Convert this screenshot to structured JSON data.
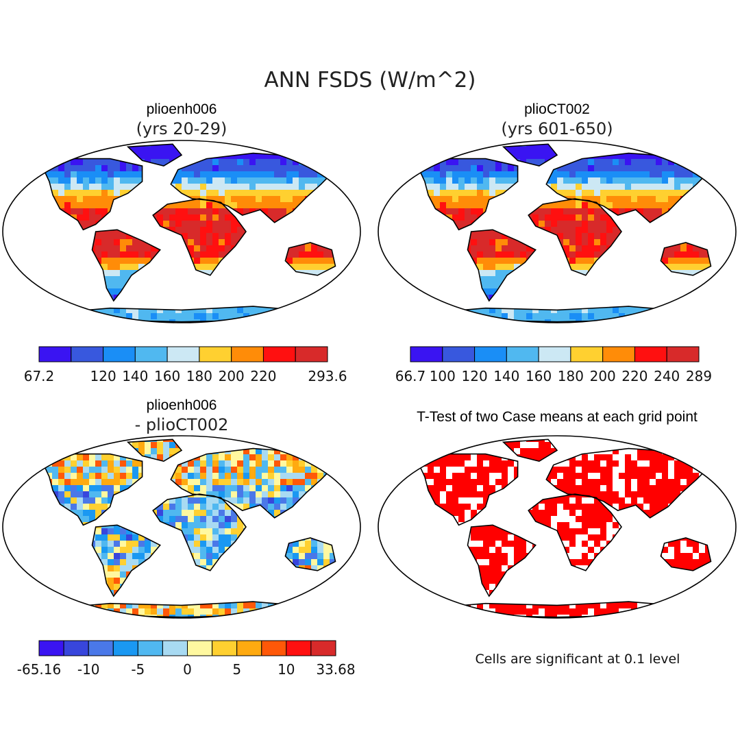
{
  "figure": {
    "title": "ANN FSDS (W/m^2)"
  },
  "panels": [
    {
      "id": "case1",
      "title": "plioenh006",
      "subtitle": "(yrs 20-29)",
      "fill": "mean_field",
      "colorbar": {
        "colors": [
          "#3a14f2",
          "#3858de",
          "#1a8ef6",
          "#50b8f0",
          "#cce8f4",
          "#ffd030",
          "#ff8c08",
          "#ff1010",
          "#d82a2a"
        ],
        "labels": [
          {
            "text": "67.2",
            "edge": 0
          },
          {
            "text": "120",
            "edge": 2
          },
          {
            "text": "140",
            "edge": 3
          },
          {
            "text": "160",
            "edge": 4
          },
          {
            "text": "180",
            "edge": 5
          },
          {
            "text": "200",
            "edge": 6
          },
          {
            "text": "220",
            "edge": 7
          },
          {
            "text": "293.6",
            "edge": 9
          }
        ]
      }
    },
    {
      "id": "case2",
      "title": "plioCT002",
      "subtitle": "(yrs 601-650)",
      "fill": "mean_field",
      "colorbar": {
        "colors": [
          "#3a14f2",
          "#3858de",
          "#1a8ef6",
          "#50b8f0",
          "#cce8f4",
          "#ffd030",
          "#ff8c08",
          "#ff1010",
          "#d82a2a"
        ],
        "labels": [
          {
            "text": "66.7",
            "edge": 0
          },
          {
            "text": "100",
            "edge": 1
          },
          {
            "text": "120",
            "edge": 2
          },
          {
            "text": "140",
            "edge": 3
          },
          {
            "text": "160",
            "edge": 4
          },
          {
            "text": "180",
            "edge": 5
          },
          {
            "text": "200",
            "edge": 6
          },
          {
            "text": "220",
            "edge": 7
          },
          {
            "text": "240",
            "edge": 8
          },
          {
            "text": "289",
            "edge": 9
          }
        ]
      }
    },
    {
      "id": "diff",
      "title": "plioenh006",
      "subtitle": "- plioCT002",
      "fill": "difference_field",
      "colorbar": {
        "colors": [
          "#3a14f2",
          "#3846dc",
          "#4a78e8",
          "#1a98f2",
          "#50b8f0",
          "#a8daf2",
          "#fff8a0",
          "#ffd030",
          "#ffaa10",
          "#ff5808",
          "#ff1010",
          "#d82a2a"
        ],
        "labels": [
          {
            "text": "-65.16",
            "edge": 0
          },
          {
            "text": "-10",
            "edge": 2
          },
          {
            "text": "-5",
            "edge": 4
          },
          {
            "text": "0",
            "edge": 6
          },
          {
            "text": "5",
            "edge": 8
          },
          {
            "text": "10",
            "edge": 10
          },
          {
            "text": "33.68",
            "edge": 12
          }
        ]
      }
    },
    {
      "id": "ttest",
      "title": "T-Test of two Case means at each grid point",
      "subtitle": "",
      "fill": "significance",
      "significance_color": "#ff0000",
      "note": "Cells are significant at 0.1 level"
    }
  ]
}
